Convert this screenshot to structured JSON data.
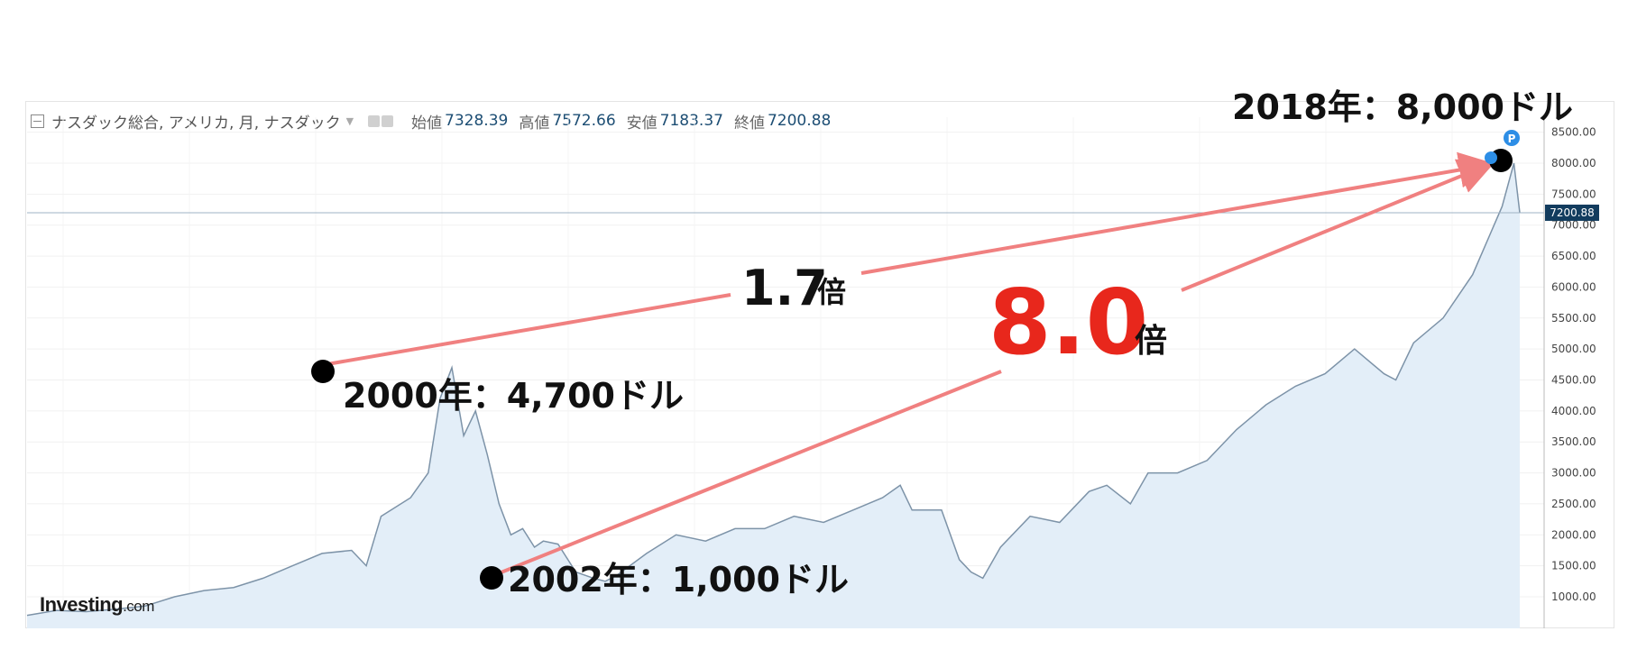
{
  "header": {
    "symbol_text": "ナスダック総合, アメリカ, 月, ナスダック",
    "ohlc": [
      {
        "label": "始値",
        "value": "7328.39"
      },
      {
        "label": "高値",
        "value": "7572.66"
      },
      {
        "label": "安値",
        "value": "7183.37"
      },
      {
        "label": "終値",
        "value": "7200.88"
      }
    ]
  },
  "last_price_tag": "7200.88",
  "watermark": {
    "brand": "Investing",
    "suffix": ".com"
  },
  "badges": [
    "P"
  ],
  "annotations": {
    "point_2000": "2000年：4,700ドル",
    "point_2002": "2002年：1,000ドル",
    "point_2018": "2018年：8,000ドル",
    "ratio_1": {
      "number": "1.7",
      "unit": "倍"
    },
    "ratio_2": {
      "number": "8.0",
      "unit": "倍"
    }
  },
  "colors": {
    "line": "#7d93a8",
    "area": "#e3eef8",
    "arrow": "#f08080",
    "ratio_highlight": "#e8271c",
    "price_tag": "#123c5e"
  },
  "chart_data": {
    "type": "area",
    "title": "",
    "ylim": [
      0,
      8800
    ],
    "y_ticks": [
      "1000.00",
      "1500.00",
      "2000.00",
      "2500.00",
      "3000.00",
      "3500.00",
      "4000.00",
      "4500.00",
      "5000.00",
      "5500.00",
      "6000.00",
      "6500.00",
      "7000.00",
      "7500.00",
      "8000.00",
      "8500.00"
    ],
    "x_range": [
      1993.0,
      2018.3
    ],
    "series": [
      {
        "x": [
          1993.0,
          1993.5,
          1994.0,
          1994.5,
          1995.0,
          1995.5,
          1996.0,
          1996.5,
          1997.0,
          1997.5,
          1998.0,
          1998.5,
          1998.75,
          1999.0,
          1999.5,
          1999.8,
          2000.0,
          2000.2,
          2000.4,
          2000.6,
          2000.8,
          2001.0,
          2001.2,
          2001.4,
          2001.6,
          2001.75,
          2002.0,
          2002.3,
          2002.6,
          2002.8,
          2003.0,
          2003.5,
          2004.0,
          2004.5,
          2005.0,
          2005.5,
          2006.0,
          2006.5,
          2007.0,
          2007.5,
          2007.8,
          2008.0,
          2008.5,
          2008.8,
          2009.0,
          2009.2,
          2009.5,
          2010.0,
          2010.5,
          2011.0,
          2011.3,
          2011.7,
          2012.0,
          2012.5,
          2013.0,
          2013.5,
          2014.0,
          2014.5,
          2015.0,
          2015.5,
          2016.0,
          2016.2,
          2016.5,
          2017.0,
          2017.5,
          2018.0,
          2018.2,
          2018.3
        ],
        "y": [
          700,
          780,
          760,
          800,
          850,
          1000,
          1100,
          1150,
          1300,
          1500,
          1700,
          1750,
          1500,
          2300,
          2600,
          3000,
          4200,
          4700,
          3600,
          4000,
          3300,
          2500,
          2000,
          2100,
          1800,
          1900,
          1850,
          1400,
          1300,
          1250,
          1350,
          1700,
          2000,
          1900,
          2100,
          2100,
          2300,
          2200,
          2400,
          2600,
          2800,
          2400,
          2400,
          1600,
          1400,
          1300,
          1800,
          2300,
          2200,
          2700,
          2800,
          2500,
          3000,
          3000,
          3200,
          3700,
          4100,
          4400,
          4600,
          5000,
          4600,
          4500,
          5100,
          5500,
          6200,
          7300,
          8000,
          7200
        ]
      }
    ]
  }
}
